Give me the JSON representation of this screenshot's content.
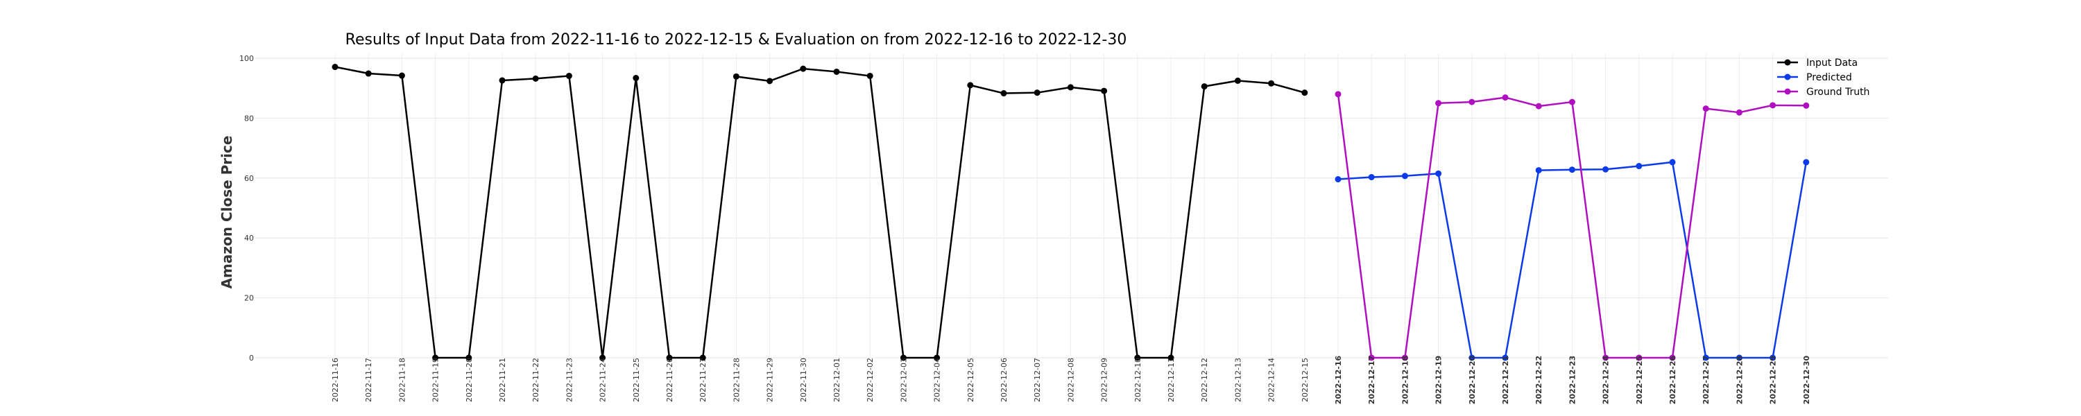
{
  "chart_data": {
    "type": "line",
    "title": "Results of Input Data from 2022-11-16 to 2022-12-15 & Evaluation on from 2022-12-16 to 2022-12-30",
    "xlabel": "",
    "ylabel": "Amazon Close Price",
    "ylim": [
      0,
      100
    ],
    "y_ticks": [
      0,
      20,
      40,
      60,
      80,
      100
    ],
    "grid": true,
    "legend_position": "top-right",
    "categories": [
      "2022-11-16",
      "2022-11-17",
      "2022-11-18",
      "2022-11-19",
      "2022-11-20",
      "2022-11-21",
      "2022-11-22",
      "2022-11-23",
      "2022-11-24",
      "2022-11-25",
      "2022-11-26",
      "2022-11-27",
      "2022-11-28",
      "2022-11-29",
      "2022-11-30",
      "2022-12-01",
      "2022-12-02",
      "2022-12-03",
      "2022-12-04",
      "2022-12-05",
      "2022-12-06",
      "2022-12-07",
      "2022-12-08",
      "2022-12-09",
      "2022-12-10",
      "2022-12-11",
      "2022-12-12",
      "2022-12-13",
      "2022-12-14",
      "2022-12-15",
      "2022-12-16",
      "2022-12-17",
      "2022-12-18",
      "2022-12-19",
      "2022-12-20",
      "2022-12-21",
      "2022-12-22",
      "2022-12-23",
      "2022-12-24",
      "2022-12-25",
      "2022-12-26",
      "2022-12-27",
      "2022-12-28",
      "2022-12-29",
      "2022-12-30"
    ],
    "x_tick_labels": [
      "2022-11-16",
      "2022-11-17",
      "2022-11-18",
      "2022-11-19",
      "2022-11-20",
      "2022-11-21",
      "2022-11-22",
      "2022-11-23",
      "2022-11-24",
      "2022-11-25",
      "2022-11-26",
      "2022-11-27",
      "2022-11-28",
      "2022-11-29",
      "2022-11-30",
      "2022-12-01",
      "2022-12-02",
      "2022-12-03",
      "2022-12-04",
      "2022-12-05",
      "2022-12-06",
      "2022-12-07",
      "2022-12-08",
      "2022-12-09",
      "2022-12-10",
      "2022-12-11",
      "2022-12-12",
      "2022-12-13",
      "2022-12-14",
      "2022-12-15",
      "2022-12-16",
      "2022-12-17",
      "2022-12-18",
      "2022-12-19",
      "2022-12-20",
      "2022-12-21",
      "2022-12-22",
      "2022-12-23",
      "2022-12-24",
      "2022-12-25",
      "2022-12-26",
      "2022-12-27",
      "2022-12-28",
      "2022-12-29",
      "2022-12-30"
    ],
    "bold_tick_labels": [
      "2022-12-16",
      "2022-12-17",
      "2022-12-18",
      "2022-12-19",
      "2022-12-20",
      "2022-12-21",
      "2022-12-22",
      "2022-12-23",
      "2022-12-24",
      "2022-12-25",
      "2022-12-26",
      "2022-12-27",
      "2022-12-28",
      "2022-12-29",
      "2022-12-30"
    ],
    "series": [
      {
        "name": "Input Data",
        "color": "#000000",
        "x": [
          "2022-11-16",
          "2022-11-17",
          "2022-11-18",
          "2022-11-19",
          "2022-11-20",
          "2022-11-21",
          "2022-11-22",
          "2022-11-23",
          "2022-11-24",
          "2022-11-25",
          "2022-11-26",
          "2022-11-27",
          "2022-11-28",
          "2022-11-29",
          "2022-11-30",
          "2022-12-01",
          "2022-12-02",
          "2022-12-03",
          "2022-12-04",
          "2022-12-05",
          "2022-12-06",
          "2022-12-07",
          "2022-12-08",
          "2022-12-09",
          "2022-12-10",
          "2022-12-11",
          "2022-12-12",
          "2022-12-13",
          "2022-12-14",
          "2022-12-15"
        ],
        "y": [
          97.1,
          94.9,
          94.2,
          0,
          0,
          92.6,
          93.2,
          94.1,
          0,
          93.4,
          0,
          0,
          93.9,
          92.4,
          96.5,
          95.5,
          94.1,
          0,
          0,
          91.0,
          88.3,
          88.5,
          90.3,
          89.1,
          0,
          0,
          90.6,
          92.5,
          91.6,
          88.5
        ]
      },
      {
        "name": "Predicted",
        "color": "#0b3be8",
        "x": [
          "2022-12-16",
          "2022-12-17",
          "2022-12-18",
          "2022-12-19",
          "2022-12-20",
          "2022-12-21",
          "2022-12-22",
          "2022-12-23",
          "2022-12-24",
          "2022-12-25",
          "2022-12-26",
          "2022-12-27",
          "2022-12-28",
          "2022-12-29",
          "2022-12-30"
        ],
        "y": [
          59.6,
          60.3,
          60.7,
          61.5,
          0,
          0,
          62.6,
          62.8,
          62.9,
          64.0,
          65.3,
          0,
          0,
          0,
          65.3
        ]
      },
      {
        "name": "Ground Truth",
        "color": "#b00fc0",
        "x": [
          "2022-12-16",
          "2022-12-17",
          "2022-12-18",
          "2022-12-19",
          "2022-12-20",
          "2022-12-21",
          "2022-12-22",
          "2022-12-23",
          "2022-12-24",
          "2022-12-25",
          "2022-12-26",
          "2022-12-27",
          "2022-12-28",
          "2022-12-29",
          "2022-12-30"
        ],
        "y": [
          88.0,
          0,
          0,
          85.0,
          85.4,
          86.9,
          84.0,
          85.4,
          0,
          0,
          0,
          83.2,
          81.9,
          84.3,
          84.2
        ]
      }
    ]
  }
}
